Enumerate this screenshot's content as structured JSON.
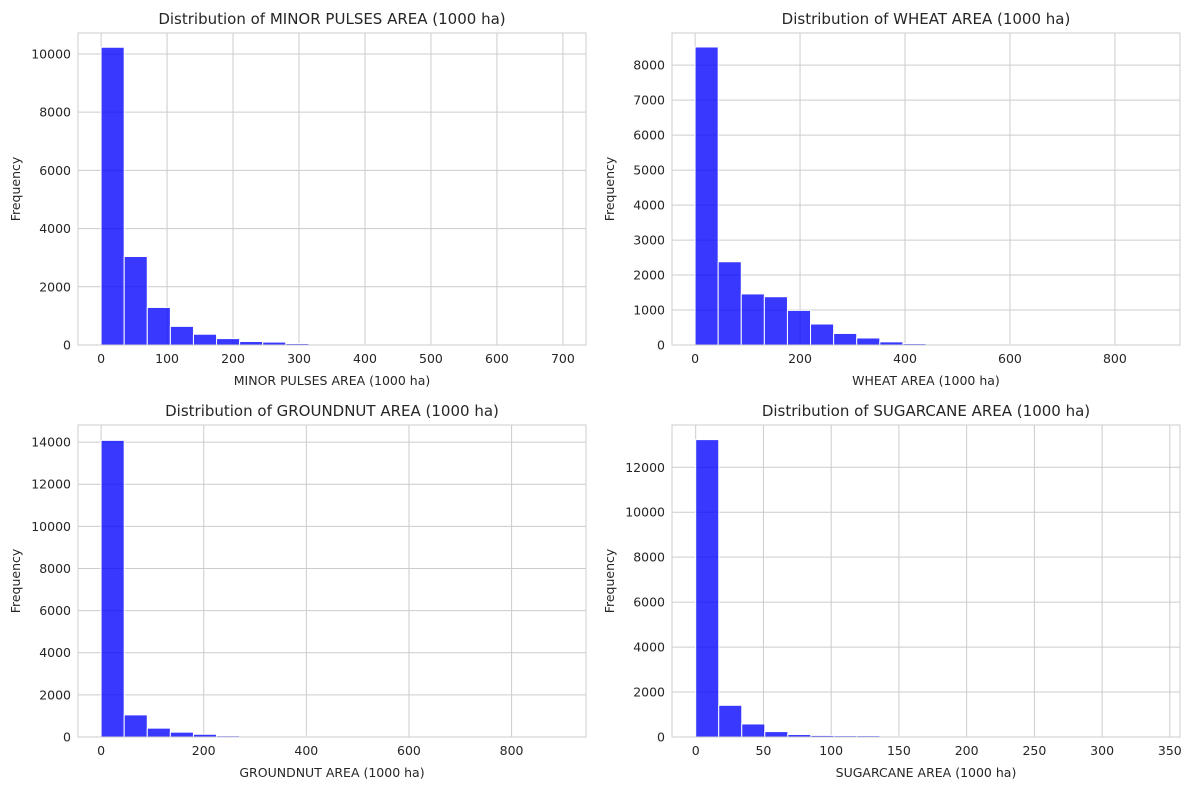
{
  "chart_data": [
    {
      "type": "bar",
      "title": "Distribution of MINOR PULSES AREA (1000 ha)",
      "xlabel": "MINOR PULSES AREA (1000 ha)",
      "ylabel": "Frequency",
      "xlim": [
        -35,
        735
      ],
      "ylim": [
        0,
        10720
      ],
      "xticks": [
        0,
        100,
        200,
        300,
        400,
        500,
        600,
        700
      ],
      "yticks": [
        0,
        2000,
        4000,
        6000,
        8000,
        10000
      ],
      "bin_edges": [
        0,
        35,
        70,
        105,
        140,
        175,
        210,
        245,
        280,
        315,
        350,
        385,
        420,
        455,
        490,
        525,
        560,
        595,
        630,
        665,
        700
      ],
      "values": [
        10230,
        3040,
        1290,
        640,
        370,
        220,
        120,
        100,
        50,
        30,
        20,
        15,
        10,
        8,
        6,
        4,
        3,
        2,
        2,
        1
      ],
      "color": "#0000ff",
      "grid": true
    },
    {
      "type": "bar",
      "title": "Distribution of WHEAT AREA (1000 ha)",
      "xlabel": "WHEAT AREA (1000 ha)",
      "ylabel": "Frequency",
      "xlim": [
        -44,
        924
      ],
      "ylim": [
        0,
        8920
      ],
      "xticks": [
        0,
        200,
        400,
        600,
        800
      ],
      "yticks": [
        0,
        1000,
        2000,
        3000,
        4000,
        5000,
        6000,
        7000,
        8000
      ],
      "bin_edges": [
        0,
        44,
        88,
        132,
        176,
        220,
        264,
        308,
        352,
        396,
        440,
        484,
        528,
        572,
        616,
        660,
        704,
        748,
        792,
        836,
        880
      ],
      "values": [
        8520,
        2380,
        1460,
        1380,
        990,
        600,
        330,
        200,
        90,
        40,
        20,
        15,
        10,
        8,
        5,
        3,
        2,
        2,
        1,
        1
      ],
      "color": "#0000ff",
      "grid": true
    },
    {
      "type": "bar",
      "title": "Distribution of GROUNDNUT AREA (1000 ha)",
      "xlabel": "GROUNDNUT AREA (1000 ha)",
      "ylabel": "Frequency",
      "xlim": [
        -45,
        945
      ],
      "ylim": [
        0,
        14810
      ],
      "xticks": [
        0,
        200,
        400,
        600,
        800
      ],
      "yticks": [
        0,
        2000,
        4000,
        6000,
        8000,
        10000,
        12000,
        14000
      ],
      "bin_edges": [
        0,
        45,
        90,
        135,
        180,
        225,
        270,
        315,
        360,
        405,
        450,
        495,
        540,
        585,
        630,
        675,
        720,
        765,
        810,
        855,
        900
      ],
      "values": [
        14080,
        1050,
        420,
        230,
        130,
        60,
        30,
        20,
        40,
        25,
        10,
        5,
        5,
        3,
        2,
        2,
        5,
        2,
        1,
        1
      ],
      "color": "#0000ff",
      "grid": true
    },
    {
      "type": "bar",
      "title": "Distribution of SUGARCANE AREA (1000 ha)",
      "xlabel": "SUGARCANE AREA (1000 ha)",
      "ylabel": "Frequency",
      "xlim": [
        -17.5,
        357.5
      ],
      "ylim": [
        0,
        13880
      ],
      "xticks": [
        0,
        50,
        100,
        150,
        200,
        250,
        300,
        350
      ],
      "yticks": [
        0,
        2000,
        4000,
        6000,
        8000,
        10000,
        12000
      ],
      "bin_edges": [
        0,
        17,
        34,
        51,
        68,
        85,
        102,
        119,
        136,
        153,
        170,
        187,
        204,
        221,
        238,
        255,
        272,
        289,
        306,
        323,
        340
      ],
      "values": [
        13230,
        1410,
        580,
        240,
        110,
        70,
        60,
        60,
        40,
        20,
        10,
        8,
        6,
        4,
        3,
        2,
        2,
        1,
        1,
        1
      ],
      "color": "#0000ff",
      "grid": true
    }
  ]
}
